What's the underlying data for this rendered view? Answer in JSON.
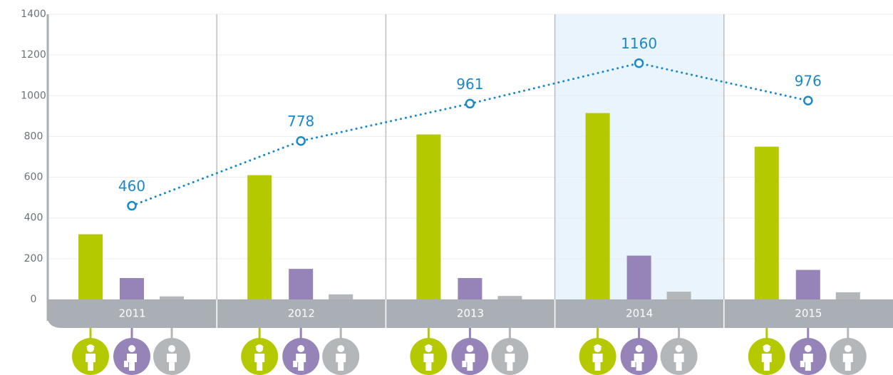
{
  "chart_data": {
    "type": "bar",
    "categories": [
      "2011",
      "2012",
      "2013",
      "2014",
      "2015"
    ],
    "highlight": "2014",
    "highlight_color": "#eaf4fc",
    "ylim": [
      0,
      1400
    ],
    "yticks": [
      0,
      200,
      400,
      600,
      800,
      1000,
      1200,
      1400
    ],
    "grid": true,
    "series": [
      {
        "type": "bar",
        "color": "#b5c900",
        "values": [
          320,
          610,
          810,
          915,
          750
        ]
      },
      {
        "type": "bar",
        "color": "#9683b8",
        "values": [
          105,
          150,
          105,
          215,
          145
        ]
      },
      {
        "type": "bar",
        "color": "#b3b7ba",
        "values": [
          15,
          25,
          17,
          38,
          35
        ]
      },
      {
        "type": "line",
        "color": "#1a88c9",
        "values": [
          460,
          778,
          961,
          1160,
          976
        ]
      }
    ]
  }
}
